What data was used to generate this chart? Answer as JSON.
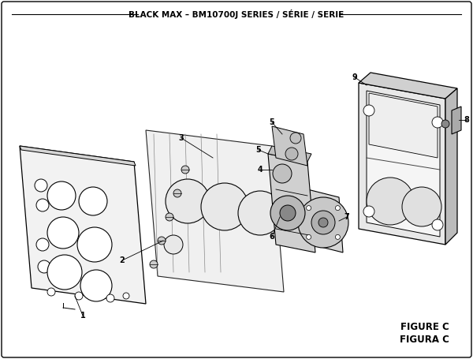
{
  "title": "BLACK MAX – BM10700J SERIES / SÉRIE / SERIE",
  "figure_label": "FIGURE C",
  "figura_label": "FIGURA C",
  "bg_color": "#ffffff",
  "text_color": "#000000",
  "title_fontsize": 7.5,
  "label_fontsize": 7,
  "figure_label_fontsize": 8.5,
  "line_color": "#000000",
  "fill_light": "#f0f0f0",
  "fill_mid": "#d8d8d8",
  "fill_dark": "#b0b0b0"
}
